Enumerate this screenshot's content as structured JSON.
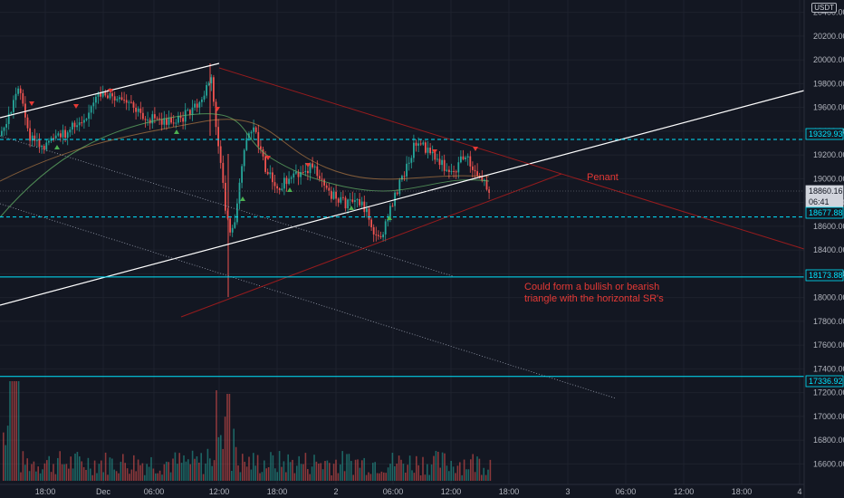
{
  "currency": "USDT",
  "annotations": {
    "pennant": "Penant",
    "note_line1": "Could form a bullish or bearish",
    "note_line2": "triangle with the horizontal SR's"
  },
  "colors": {
    "background": "#131722",
    "up": "#26a69a",
    "down": "#ef5350",
    "cyan": "#00e5ff",
    "annotation": "#e53935",
    "trendline": "#ffffff"
  },
  "chart_data": {
    "type": "candlestick",
    "symbol_quote": "USDT",
    "y_axis": {
      "ticks": [
        "20400.00",
        "20200.00",
        "20000.00",
        "19800.00",
        "19600.00",
        "19400.00",
        "19200.00",
        "19000.00",
        "18800.00",
        "18600.00",
        "18400.00",
        "18200.00",
        "18000.00",
        "17800.00",
        "17600.00",
        "17400.00",
        "17200.00",
        "17000.00",
        "16800.00",
        "16600.00"
      ],
      "range": [
        16500,
        20450
      ]
    },
    "x_axis": {
      "ticks": [
        "18:00",
        "Dec",
        "06:00",
        "12:00",
        "18:00",
        "2",
        "06:00",
        "12:00",
        "18:00",
        "3",
        "06:00",
        "12:00",
        "18:00",
        "4"
      ]
    },
    "price_labels": [
      {
        "value": "19329.93",
        "style": "dashed-cyan"
      },
      {
        "value": "18860.16",
        "style": "last-price"
      },
      {
        "value": "06:41",
        "style": "countdown"
      },
      {
        "value": "18677.88",
        "style": "dashed-cyan"
      },
      {
        "value": "18173.88",
        "style": "solid-cyan"
      },
      {
        "value": "17336.92",
        "style": "solid-cyan"
      }
    ],
    "horizontal_levels": [
      {
        "price": 19329.93,
        "style": "dashed"
      },
      {
        "price": 18677.88,
        "style": "dashed"
      },
      {
        "price": 18173.88,
        "style": "solid"
      },
      {
        "price": 17336.92,
        "style": "solid"
      }
    ]
  }
}
